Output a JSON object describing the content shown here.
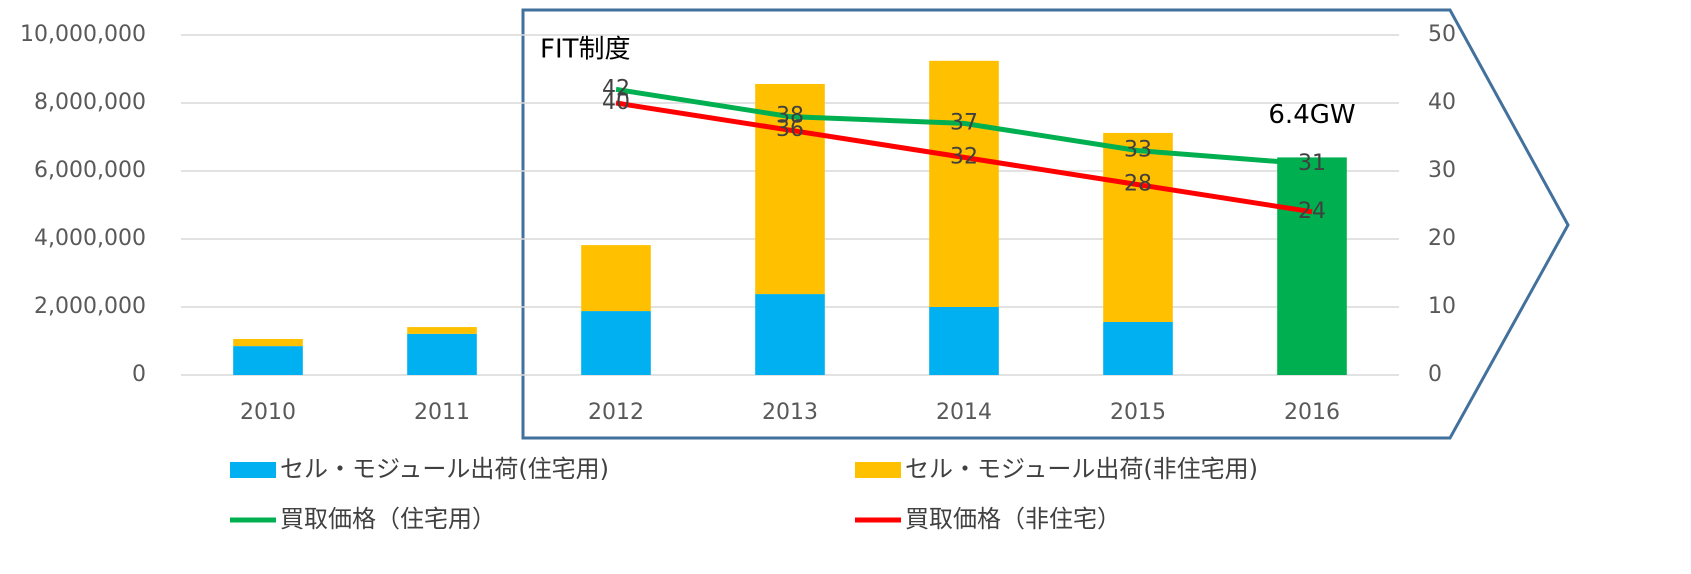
{
  "chart_data": {
    "type": "bar",
    "categories": [
      "2010",
      "2011",
      "2012",
      "2013",
      "2014",
      "2015",
      "2016"
    ],
    "series": [
      {
        "name": "セル・モジュール出荷(住宅用)",
        "color": "#00b0f0",
        "type": "bar",
        "values": [
          850000,
          1210000,
          1880000,
          2380000,
          2000000,
          1560000,
          null
        ]
      },
      {
        "name": "セル・モジュール出荷(非住宅用)",
        "color": "#ffc000",
        "type": "bar",
        "values": [
          210000,
          200000,
          1940000,
          6180000,
          7240000,
          5560000,
          null
        ]
      },
      {
        "color": "#00b050",
        "type": "bar",
        "values": [
          null,
          null,
          null,
          null,
          null,
          null,
          6400000
        ],
        "value_labels": [
          null,
          null,
          null,
          null,
          null,
          null,
          "6.4GW"
        ]
      },
      {
        "name": "買取価格（住宅用）",
        "color": "#00b050",
        "type": "line",
        "axis": "y2",
        "values": [
          null,
          null,
          42,
          38,
          37,
          33,
          31
        ]
      },
      {
        "name": "買取価格（非住宅）",
        "color": "#ff0000",
        "type": "line",
        "axis": "y2",
        "values": [
          null,
          null,
          40,
          36,
          32,
          28,
          24
        ]
      }
    ],
    "ylim": [
      0,
      10000000
    ],
    "yticks": [
      0,
      {
        "value": 2000000,
        "label": "2,000,000"
      },
      {
        "value": 4000000,
        "label": "4,000,000"
      },
      {
        "value": 6000000,
        "label": "6,000,000"
      },
      {
        "value": 8000000,
        "label": "8,000,000"
      },
      {
        "value": 10000000,
        "label": "10,000,000"
      }
    ],
    "y2lim": [
      0,
      50
    ],
    "y2ticks": [
      0,
      10,
      20,
      30,
      40,
      50
    ],
    "annotation": "FIT制度",
    "grid": true
  }
}
